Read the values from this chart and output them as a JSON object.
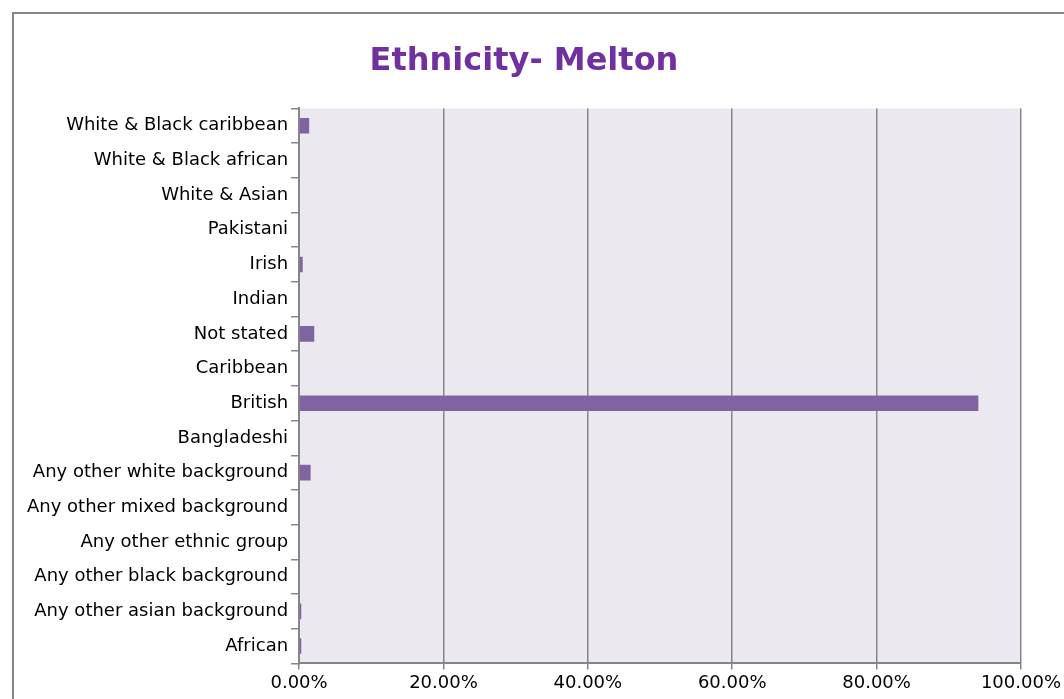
{
  "chart_data": {
    "type": "bar",
    "orientation": "horizontal",
    "title": "Ethnicity- Melton",
    "categories": [
      "White & Black caribbean",
      "White & Black african",
      "White & Asian",
      "Pakistani",
      "Irish",
      "Indian",
      "Not stated",
      "Caribbean",
      "British",
      "Bangladeshi",
      "Any other white background",
      "Any other mixed background",
      "Any other ethnic group",
      "Any other black background",
      "Any other asian background",
      "African"
    ],
    "values": [
      1.4,
      0,
      0,
      0,
      0.5,
      0,
      2.1,
      0,
      94.1,
      0,
      1.6,
      0,
      0,
      0,
      0.3,
      0.3
    ],
    "color": "#8064a2",
    "xlim": [
      0,
      100
    ],
    "xticks": [
      {
        "value": 0,
        "label": "0.00%"
      },
      {
        "value": 20,
        "label": "20.00%"
      },
      {
        "value": 40,
        "label": "40.00%"
      },
      {
        "value": 60,
        "label": "60.00%"
      },
      {
        "value": 80,
        "label": "80.00%"
      },
      {
        "value": 100,
        "label": "100.00%"
      }
    ],
    "grid": "x",
    "legend": false
  }
}
